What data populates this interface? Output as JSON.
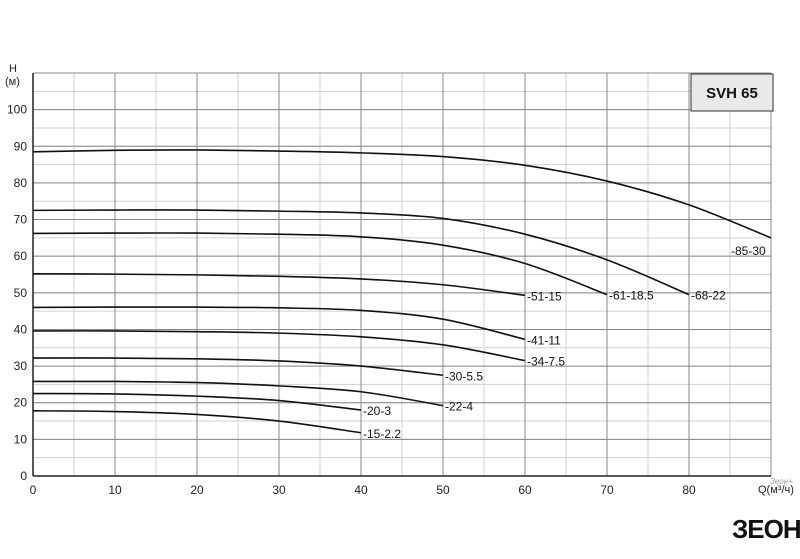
{
  "chart_data": {
    "type": "line",
    "title": "SVH 65",
    "ylabel_line1": "H",
    "ylabel_line2": "(м)",
    "xlabel": "Q(м³/ч)",
    "xlim": [
      0,
      90
    ],
    "ylim": [
      0,
      110
    ],
    "x_ticks": [
      0,
      10,
      20,
      30,
      40,
      50,
      60,
      70,
      80
    ],
    "y_ticks": [
      0,
      10,
      20,
      30,
      40,
      50,
      60,
      70,
      80,
      90,
      100
    ],
    "grid": true,
    "series": [
      {
        "name": "-85-30",
        "x": [
          0,
          10,
          20,
          30,
          40,
          50,
          60,
          70,
          80,
          90
        ],
        "y": [
          88.5,
          88.9,
          89.0,
          88.7,
          88.2,
          87.2,
          84.8,
          80.5,
          74.0,
          65.0
        ]
      },
      {
        "name": "-68-22",
        "x": [
          0,
          10,
          20,
          30,
          40,
          50,
          60,
          70,
          80
        ],
        "y": [
          72.5,
          72.6,
          72.6,
          72.3,
          71.8,
          70.3,
          66.0,
          59.0,
          49.5
        ]
      },
      {
        "name": "-61-18.5",
        "x": [
          0,
          10,
          20,
          30,
          40,
          50,
          60,
          70
        ],
        "y": [
          66.2,
          66.3,
          66.3,
          66.0,
          65.3,
          63.0,
          58.0,
          49.5
        ]
      },
      {
        "name": "-51-15",
        "x": [
          0,
          10,
          20,
          30,
          40,
          50,
          60
        ],
        "y": [
          55.2,
          55.1,
          54.9,
          54.5,
          53.8,
          52.2,
          49.3
        ]
      },
      {
        "name": "-41-11",
        "x": [
          0,
          10,
          20,
          30,
          40,
          50,
          60
        ],
        "y": [
          46.0,
          46.1,
          46.1,
          45.9,
          45.2,
          42.8,
          37.3
        ]
      },
      {
        "name": "-34-7.5",
        "x": [
          0,
          10,
          20,
          30,
          40,
          50,
          60
        ],
        "y": [
          39.6,
          39.6,
          39.4,
          39.0,
          38.0,
          35.8,
          31.5
        ]
      },
      {
        "name": "-30-5.5",
        "x": [
          0,
          10,
          20,
          30,
          40,
          50
        ],
        "y": [
          32.2,
          32.2,
          32.0,
          31.4,
          30.0,
          27.5
        ]
      },
      {
        "name": "-22-4",
        "x": [
          0,
          10,
          20,
          30,
          40,
          50
        ],
        "y": [
          25.8,
          25.8,
          25.5,
          24.6,
          23.0,
          19.2
        ]
      },
      {
        "name": "-20-3",
        "x": [
          0,
          10,
          20,
          30,
          40
        ],
        "y": [
          22.5,
          22.4,
          21.8,
          20.6,
          18.0
        ]
      },
      {
        "name": "-15-2.2",
        "x": [
          0,
          10,
          20,
          30,
          40
        ],
        "y": [
          17.8,
          17.6,
          16.8,
          15.0,
          11.8
        ]
      }
    ]
  },
  "watermark_text": "Зеон+",
  "logo_text": "ЗЕОН",
  "colors": {
    "curve": "#111111",
    "grid_major": "#888888",
    "grid_minor": "#d0d0d0",
    "axis": "#222222"
  }
}
